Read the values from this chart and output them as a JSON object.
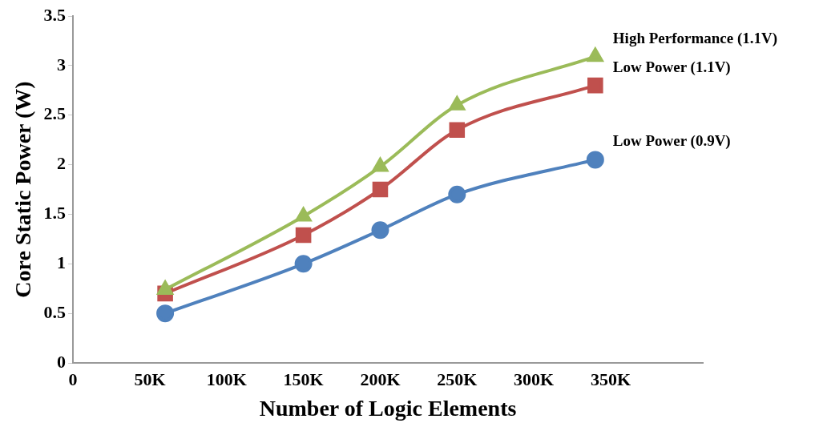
{
  "chart_data": {
    "type": "line",
    "xlabel": "Number of Logic Elements",
    "ylabel": "Core Static Power (W)",
    "x": [
      60000,
      150000,
      200000,
      250000,
      340000
    ],
    "series": [
      {
        "name": "High Performance (1.1V)",
        "color": "#9bbb59",
        "marker": "triangle",
        "values": [
          0.74,
          1.48,
          1.98,
          2.6,
          3.09
        ]
      },
      {
        "name": "Low Power (1.1V)",
        "color": "#c0504d",
        "marker": "square",
        "values": [
          0.7,
          1.29,
          1.75,
          2.35,
          2.8
        ]
      },
      {
        "name": "Low Power (0.9V)",
        "color": "#4f81bd",
        "marker": "circle",
        "values": [
          0.5,
          1.0,
          1.34,
          1.7,
          2.05
        ]
      }
    ],
    "xlim": [
      0,
      410000
    ],
    "xticks": [
      {
        "value": 0,
        "label": "0"
      },
      {
        "value": 50000,
        "label": "50K"
      },
      {
        "value": 100000,
        "label": "100K"
      },
      {
        "value": 150000,
        "label": "150K"
      },
      {
        "value": 200000,
        "label": "200K"
      },
      {
        "value": 250000,
        "label": "250K"
      },
      {
        "value": 300000,
        "label": "300K"
      },
      {
        "value": 350000,
        "label": "350K"
      }
    ],
    "ylim": [
      0,
      3.5
    ],
    "yticks": [
      0,
      0.5,
      1,
      1.5,
      2,
      2.5,
      3,
      3.5
    ],
    "grid": false,
    "legend": false,
    "line_style": "solid"
  }
}
